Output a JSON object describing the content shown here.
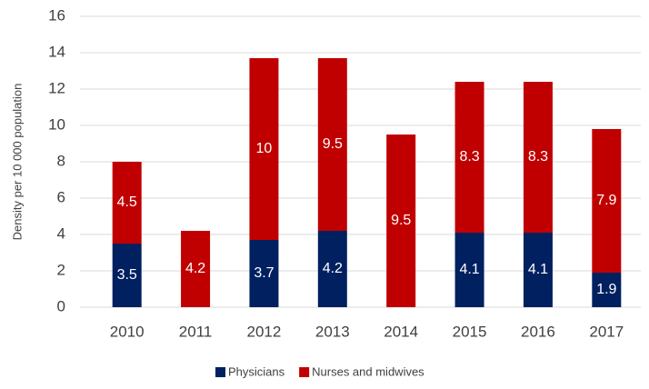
{
  "chart_data": {
    "type": "stacked_bar",
    "y_label": "Density per 10 000 population",
    "categories": [
      "2010",
      "2011",
      "2012",
      "2013",
      "2014",
      "2015",
      "2016",
      "2017"
    ],
    "series": [
      {
        "name": "Physicians",
        "color": "#002060",
        "values": [
          3.5,
          null,
          3.7,
          4.2,
          null,
          4.1,
          4.1,
          1.9
        ]
      },
      {
        "name": "Nurses and midwives",
        "color": "#c00000",
        "values": [
          4.5,
          4.2,
          10,
          9.5,
          9.5,
          8.3,
          8.3,
          7.9
        ]
      }
    ],
    "ylim": [
      0,
      16
    ],
    "yticks": [
      0,
      2,
      4,
      6,
      8,
      10,
      12,
      14,
      16
    ],
    "grid": true,
    "legend": "bottom"
  }
}
